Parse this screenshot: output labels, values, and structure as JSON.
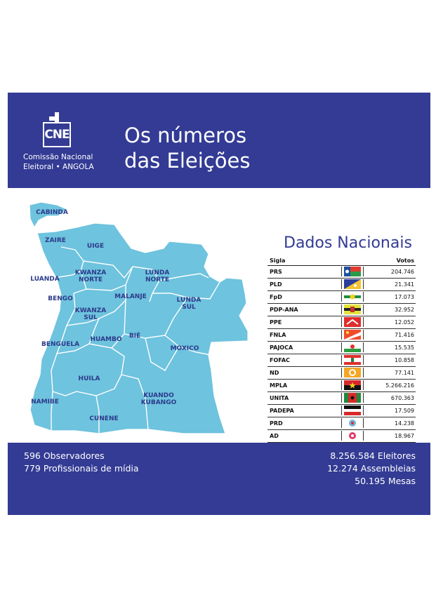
{
  "colors": {
    "brand": "#333b94",
    "map_fill": "#6ec3de",
    "province_label": "#2c3a8a"
  },
  "logo": {
    "mark": "CNE",
    "line1": "Comissão Nacional",
    "line2": "Eleitoral • ANGOLA"
  },
  "header": {
    "title_line1": "Os números",
    "title_line2": "das Eleições"
  },
  "map": {
    "provinces": [
      "CABINDA",
      "ZAIRE",
      "UIGE",
      "LUANDA",
      "KWANZA NORTE",
      "LUNDA NORTE",
      "BENGO",
      "MALANJE",
      "LUNDA SUL",
      "KWANZA SUL",
      "BIÉ",
      "BENGUELA",
      "HUAMBO",
      "MOXICO",
      "HUILA",
      "NAMIBE",
      "KUANDO KUBANGO",
      "CUNENE"
    ]
  },
  "table": {
    "title": "Dados Nacionais",
    "col_sigla": "Sigla",
    "col_votos": "Votos",
    "rows": [
      {
        "sigla": "PRS",
        "votos": "204.746",
        "flag": "prs-flag-icon"
      },
      {
        "sigla": "PLD",
        "votos": "21.341",
        "flag": "pld-flag-icon"
      },
      {
        "sigla": "FpD",
        "votos": "17.073",
        "flag": "fpd-flag-icon"
      },
      {
        "sigla": "PDP-ANA",
        "votos": "32.952",
        "flag": "pdp-ana-flag-icon"
      },
      {
        "sigla": "PPE",
        "votos": "12.052",
        "flag": "ppe-flag-icon"
      },
      {
        "sigla": "FNLA",
        "votos": "71.416",
        "flag": "fnla-flag-icon"
      },
      {
        "sigla": "PAJOCA",
        "votos": "15.535",
        "flag": "pajoca-flag-icon"
      },
      {
        "sigla": "FOFAC",
        "votos": "10.858",
        "flag": "fofac-flag-icon"
      },
      {
        "sigla": "ND",
        "votos": "77.141",
        "flag": "nd-flag-icon"
      },
      {
        "sigla": "MPLA",
        "votos": "5.266.216",
        "flag": "mpla-flag-icon"
      },
      {
        "sigla": "UNITA",
        "votos": "670.363",
        "flag": "unita-flag-icon"
      },
      {
        "sigla": "PADEPA",
        "votos": "17.509",
        "flag": "padepa-flag-icon"
      },
      {
        "sigla": "PRD",
        "votos": "14.238",
        "flag": "prd-flag-icon"
      },
      {
        "sigla": "AD",
        "votos": "18.967",
        "flag": "ad-flag-icon"
      }
    ]
  },
  "footer": {
    "left": [
      "596 Observadores",
      "779 Profissionais de mídia"
    ],
    "right": [
      "8.256.584 Eleitores",
      "12.274 Assembleias",
      "50.195 Mesas"
    ]
  }
}
